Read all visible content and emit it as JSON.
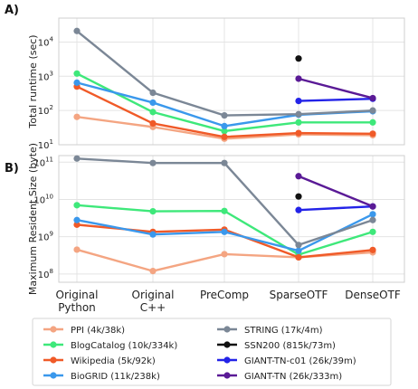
{
  "chart_data": [
    {
      "type": "line",
      "panel_label": "A)",
      "ylabel": "Total runtime (sec)",
      "yscale": "log",
      "ylim": [
        10,
        50000
      ],
      "ytick_labels": [
        {
          "value": 10,
          "base": "10",
          "exp": "1"
        },
        {
          "value": 100,
          "base": "10",
          "exp": "2"
        },
        {
          "value": 1000,
          "base": "10",
          "exp": "3"
        },
        {
          "value": 10000,
          "base": "10",
          "exp": "4"
        }
      ],
      "categories": [
        "Original\nPython",
        "Original\nC++",
        "PreComp",
        "SparseOTF",
        "DenseOTF"
      ],
      "grid": true,
      "series": [
        {
          "name": "PPI (4k/38k)",
          "color": "#f4a582",
          "values": [
            65,
            33,
            15,
            20,
            19
          ]
        },
        {
          "name": "BlogCatalog (10k/334k)",
          "color": "#3ee87a",
          "values": [
            1200,
            90,
            25,
            45,
            45
          ]
        },
        {
          "name": "Wikipedia (5k/92k)",
          "color": "#f05a28",
          "values": [
            500,
            42,
            17,
            22,
            21
          ]
        },
        {
          "name": "BioGRID (11k/238k)",
          "color": "#3a98ec",
          "values": [
            650,
            170,
            35,
            75,
            95
          ]
        },
        {
          "name": "STRING (17k/4m)",
          "color": "#7b8796",
          "values": [
            21000,
            330,
            72,
            78,
            100
          ]
        },
        {
          "name": "SSN200 (815k/73m)",
          "color": "#111111",
          "values": [
            null,
            null,
            null,
            3300,
            null
          ]
        },
        {
          "name": "GIANT-TN-c01 (26k/39m)",
          "color": "#2323e8",
          "values": [
            null,
            null,
            null,
            190,
            220
          ]
        },
        {
          "name": "GIANT-TN (26k/333m)",
          "color": "#5a1a96",
          "values": [
            null,
            null,
            null,
            850,
            230
          ]
        }
      ]
    },
    {
      "type": "line",
      "panel_label": "B)",
      "ylabel": "Maximum Resident Size (byte)",
      "yscale": "log",
      "ylim": [
        60000000,
        150000000000
      ],
      "ytick_labels": [
        {
          "value": 100000000,
          "base": "10",
          "exp": "8"
        },
        {
          "value": 1000000000,
          "base": "10",
          "exp": "9"
        },
        {
          "value": 10000000000,
          "base": "10",
          "exp": "10"
        },
        {
          "value": 100000000000,
          "base": "10",
          "exp": "11"
        }
      ],
      "categories": [
        "Original\nPython",
        "Original\nC++",
        "PreComp",
        "SparseOTF",
        "DenseOTF"
      ],
      "grid": true,
      "series": [
        {
          "name": "PPI (4k/38k)",
          "color": "#f4a582",
          "values": [
            450000000,
            120000000,
            340000000,
            280000000,
            380000000
          ]
        },
        {
          "name": "BlogCatalog (10k/334k)",
          "color": "#3ee87a",
          "values": [
            7000000000,
            4800000000,
            4900000000,
            330000000,
            1350000000
          ]
        },
        {
          "name": "Wikipedia (5k/92k)",
          "color": "#f05a28",
          "values": [
            2100000000,
            1350000000,
            1550000000,
            280000000,
            440000000
          ]
        },
        {
          "name": "BioGRID (11k/238k)",
          "color": "#3a98ec",
          "values": [
            2800000000,
            1150000000,
            1350000000,
            420000000,
            4000000000
          ]
        },
        {
          "name": "STRING (17k/4m)",
          "color": "#7b8796",
          "values": [
            125000000000,
            95000000000,
            95000000000,
            600000000,
            2800000000
          ]
        },
        {
          "name": "SSN200 (815k/73m)",
          "color": "#111111",
          "values": [
            null,
            null,
            null,
            12000000000,
            null
          ]
        },
        {
          "name": "GIANT-TN-c01 (26k/39m)",
          "color": "#2323e8",
          "values": [
            null,
            null,
            null,
            5200000000,
            6500000000
          ]
        },
        {
          "name": "GIANT-TN (26k/333m)",
          "color": "#5a1a96",
          "values": [
            null,
            null,
            null,
            42000000000,
            6500000000
          ]
        }
      ]
    }
  ],
  "legend": {
    "placement": "bottom",
    "items": [
      {
        "label": "PPI (4k/38k)",
        "color": "#f4a582"
      },
      {
        "label": "BlogCatalog (10k/334k)",
        "color": "#3ee87a"
      },
      {
        "label": "Wikipedia (5k/92k)",
        "color": "#f05a28"
      },
      {
        "label": "BioGRID (11k/238k)",
        "color": "#3a98ec"
      },
      {
        "label": "STRING (17k/4m)",
        "color": "#7b8796"
      },
      {
        "label": "SSN200 (815k/73m)",
        "color": "#111111"
      },
      {
        "label": "GIANT-TN-c01 (26k/39m)",
        "color": "#2323e8"
      },
      {
        "label": "GIANT-TN (26k/333m)",
        "color": "#5a1a96"
      }
    ]
  }
}
